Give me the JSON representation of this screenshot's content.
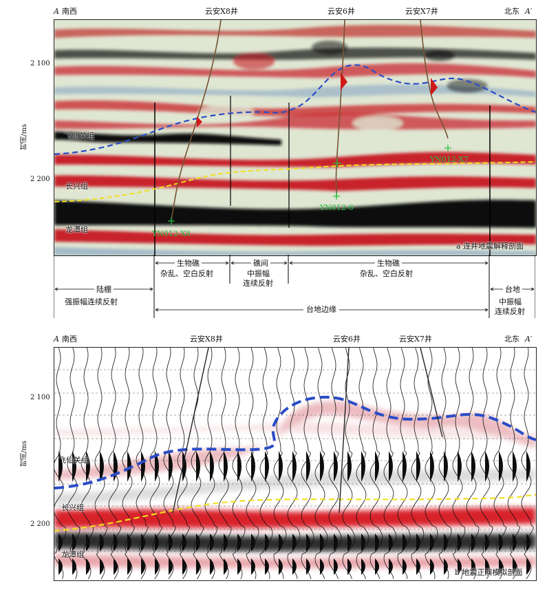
{
  "panel_a": {
    "end_left": "A",
    "dir_left": "南西",
    "end_right": "A′",
    "dir_right": "北东",
    "wells": [
      "云安X8井",
      "云安6井",
      "云安X7井"
    ],
    "y_axis_label": "时间/ms",
    "y_ticks": [
      "2 100",
      "2 200"
    ],
    "formations": [
      "飞仙关组",
      "长兴组",
      "龙潭组"
    ],
    "well_labels": [
      "YN012-X8",
      "YN012-6",
      "YN012-X7"
    ],
    "caption": "a 连井地震解释剖面",
    "colors": {
      "red": "#c8202a",
      "black": "#0d0d0d",
      "blue_horizon": "#2a4cc8",
      "yellow_horizon": "#f0e020",
      "green_marker": "#28c040"
    }
  },
  "interpretation": {
    "facies": [
      {
        "title": "生物礁",
        "desc": "杂乱、空白反射"
      },
      {
        "title": "礁间",
        "desc1": "中振幅",
        "desc2": "连续反射"
      },
      {
        "title": "生物礁",
        "desc": "杂乱、空白反射"
      },
      {
        "title": "陆棚",
        "desc": "强振幅连续反射"
      },
      {
        "title": "台地",
        "desc1": "中振幅",
        "desc2": "连续反射"
      }
    ],
    "platform_margin": "台地边缘"
  },
  "panel_b": {
    "end_left": "A",
    "dir_left": "南西",
    "end_right": "A′",
    "dir_right": "北东",
    "wells": [
      "云安X8井",
      "云安6井",
      "云安X7井"
    ],
    "y_axis_label": "时间/ms",
    "y_ticks": [
      "2 100",
      "2 200"
    ],
    "formations": [
      "飞仙关组",
      "长兴组",
      "龙潭组"
    ],
    "caption": "b 地震正演模拟剖面"
  }
}
